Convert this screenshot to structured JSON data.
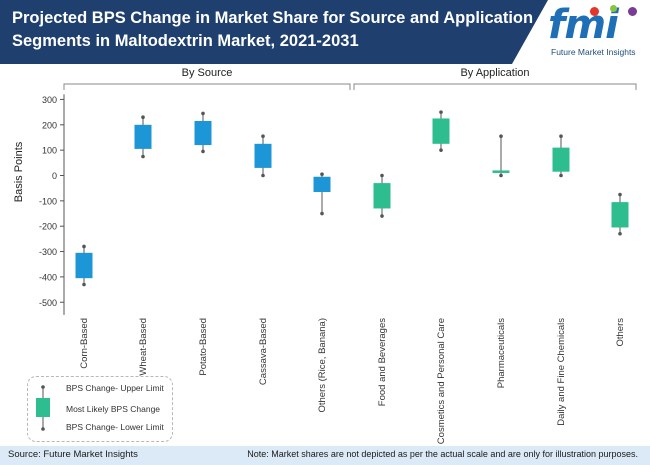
{
  "header": {
    "title_line_1": "Projected BPS Change in Market Share for Source and Application",
    "title_line_2": "Segments in Maltodextrin Market, 2021-2031"
  },
  "logo": {
    "mark": "fmi",
    "tagline": "Future Market Insights"
  },
  "colors": {
    "header_band": "#1f3f6e",
    "source_boxes": "#1c96d6",
    "application_boxes": "#2dbd8f",
    "whiskers": "#555555",
    "footer_band": "#dbeaf6"
  },
  "chart_data": {
    "type": "box",
    "ylabel": "Basis Points",
    "ylim": [
      -550,
      320
    ],
    "yticks": [
      300,
      200,
      100,
      0,
      -100,
      -200,
      -300,
      -400,
      -500
    ],
    "grid": false,
    "groups": [
      {
        "name": "By Source",
        "categories": [
          "Corn-Based",
          "Wheat-Based",
          "Potato-Based",
          "Cassava-Based",
          "Others (Rice, Banana)"
        ]
      },
      {
        "name": "By Application",
        "categories": [
          "Food and Beverages",
          "Cosmetics and Personal Care",
          "Pharmaceuticals",
          "Daily and Fine Chemicals",
          "Others"
        ]
      }
    ],
    "boxes": [
      {
        "category": "Corn-Based",
        "group": "By Source",
        "upper": -280,
        "box_top": -305,
        "box_bottom": -405,
        "lower": -430
      },
      {
        "category": "Wheat-Based",
        "group": "By Source",
        "upper": 230,
        "box_top": 200,
        "box_bottom": 105,
        "lower": 75
      },
      {
        "category": "Potato-Based",
        "group": "By Source",
        "upper": 245,
        "box_top": 215,
        "box_bottom": 120,
        "lower": 95
      },
      {
        "category": "Cassava-Based",
        "group": "By Source",
        "upper": 155,
        "box_top": 125,
        "box_bottom": 30,
        "lower": 0
      },
      {
        "category": "Others (Rice, Banana)",
        "group": "By Source",
        "upper": 5,
        "box_top": -5,
        "box_bottom": -65,
        "lower": -150
      },
      {
        "category": "Food and Beverages",
        "group": "By Application",
        "upper": 0,
        "box_top": -30,
        "box_bottom": -130,
        "lower": -160
      },
      {
        "category": "Cosmetics and Personal Care",
        "group": "By Application",
        "upper": 250,
        "box_top": 225,
        "box_bottom": 125,
        "lower": 100
      },
      {
        "category": "Pharmaceuticals",
        "group": "By Application",
        "upper": 155,
        "box_top": 20,
        "box_bottom": 10,
        "lower": 0
      },
      {
        "category": "Daily and Fine Chemicals",
        "group": "By Application",
        "upper": 155,
        "box_top": 110,
        "box_bottom": 15,
        "lower": 0
      },
      {
        "category": "Others",
        "group": "By Application",
        "upper": -75,
        "box_top": -105,
        "box_bottom": -205,
        "lower": -230
      }
    ]
  },
  "legend": {
    "upper_label": "BPS Change- Upper Limit",
    "mid_label": "Most Likely BPS Change",
    "lower_label": "BPS Change- Lower Limit"
  },
  "footer": {
    "source": "Source: Future Market Insights",
    "note": "Note: Market shares are not depicted as per the actual scale and are only for illustration purposes."
  }
}
